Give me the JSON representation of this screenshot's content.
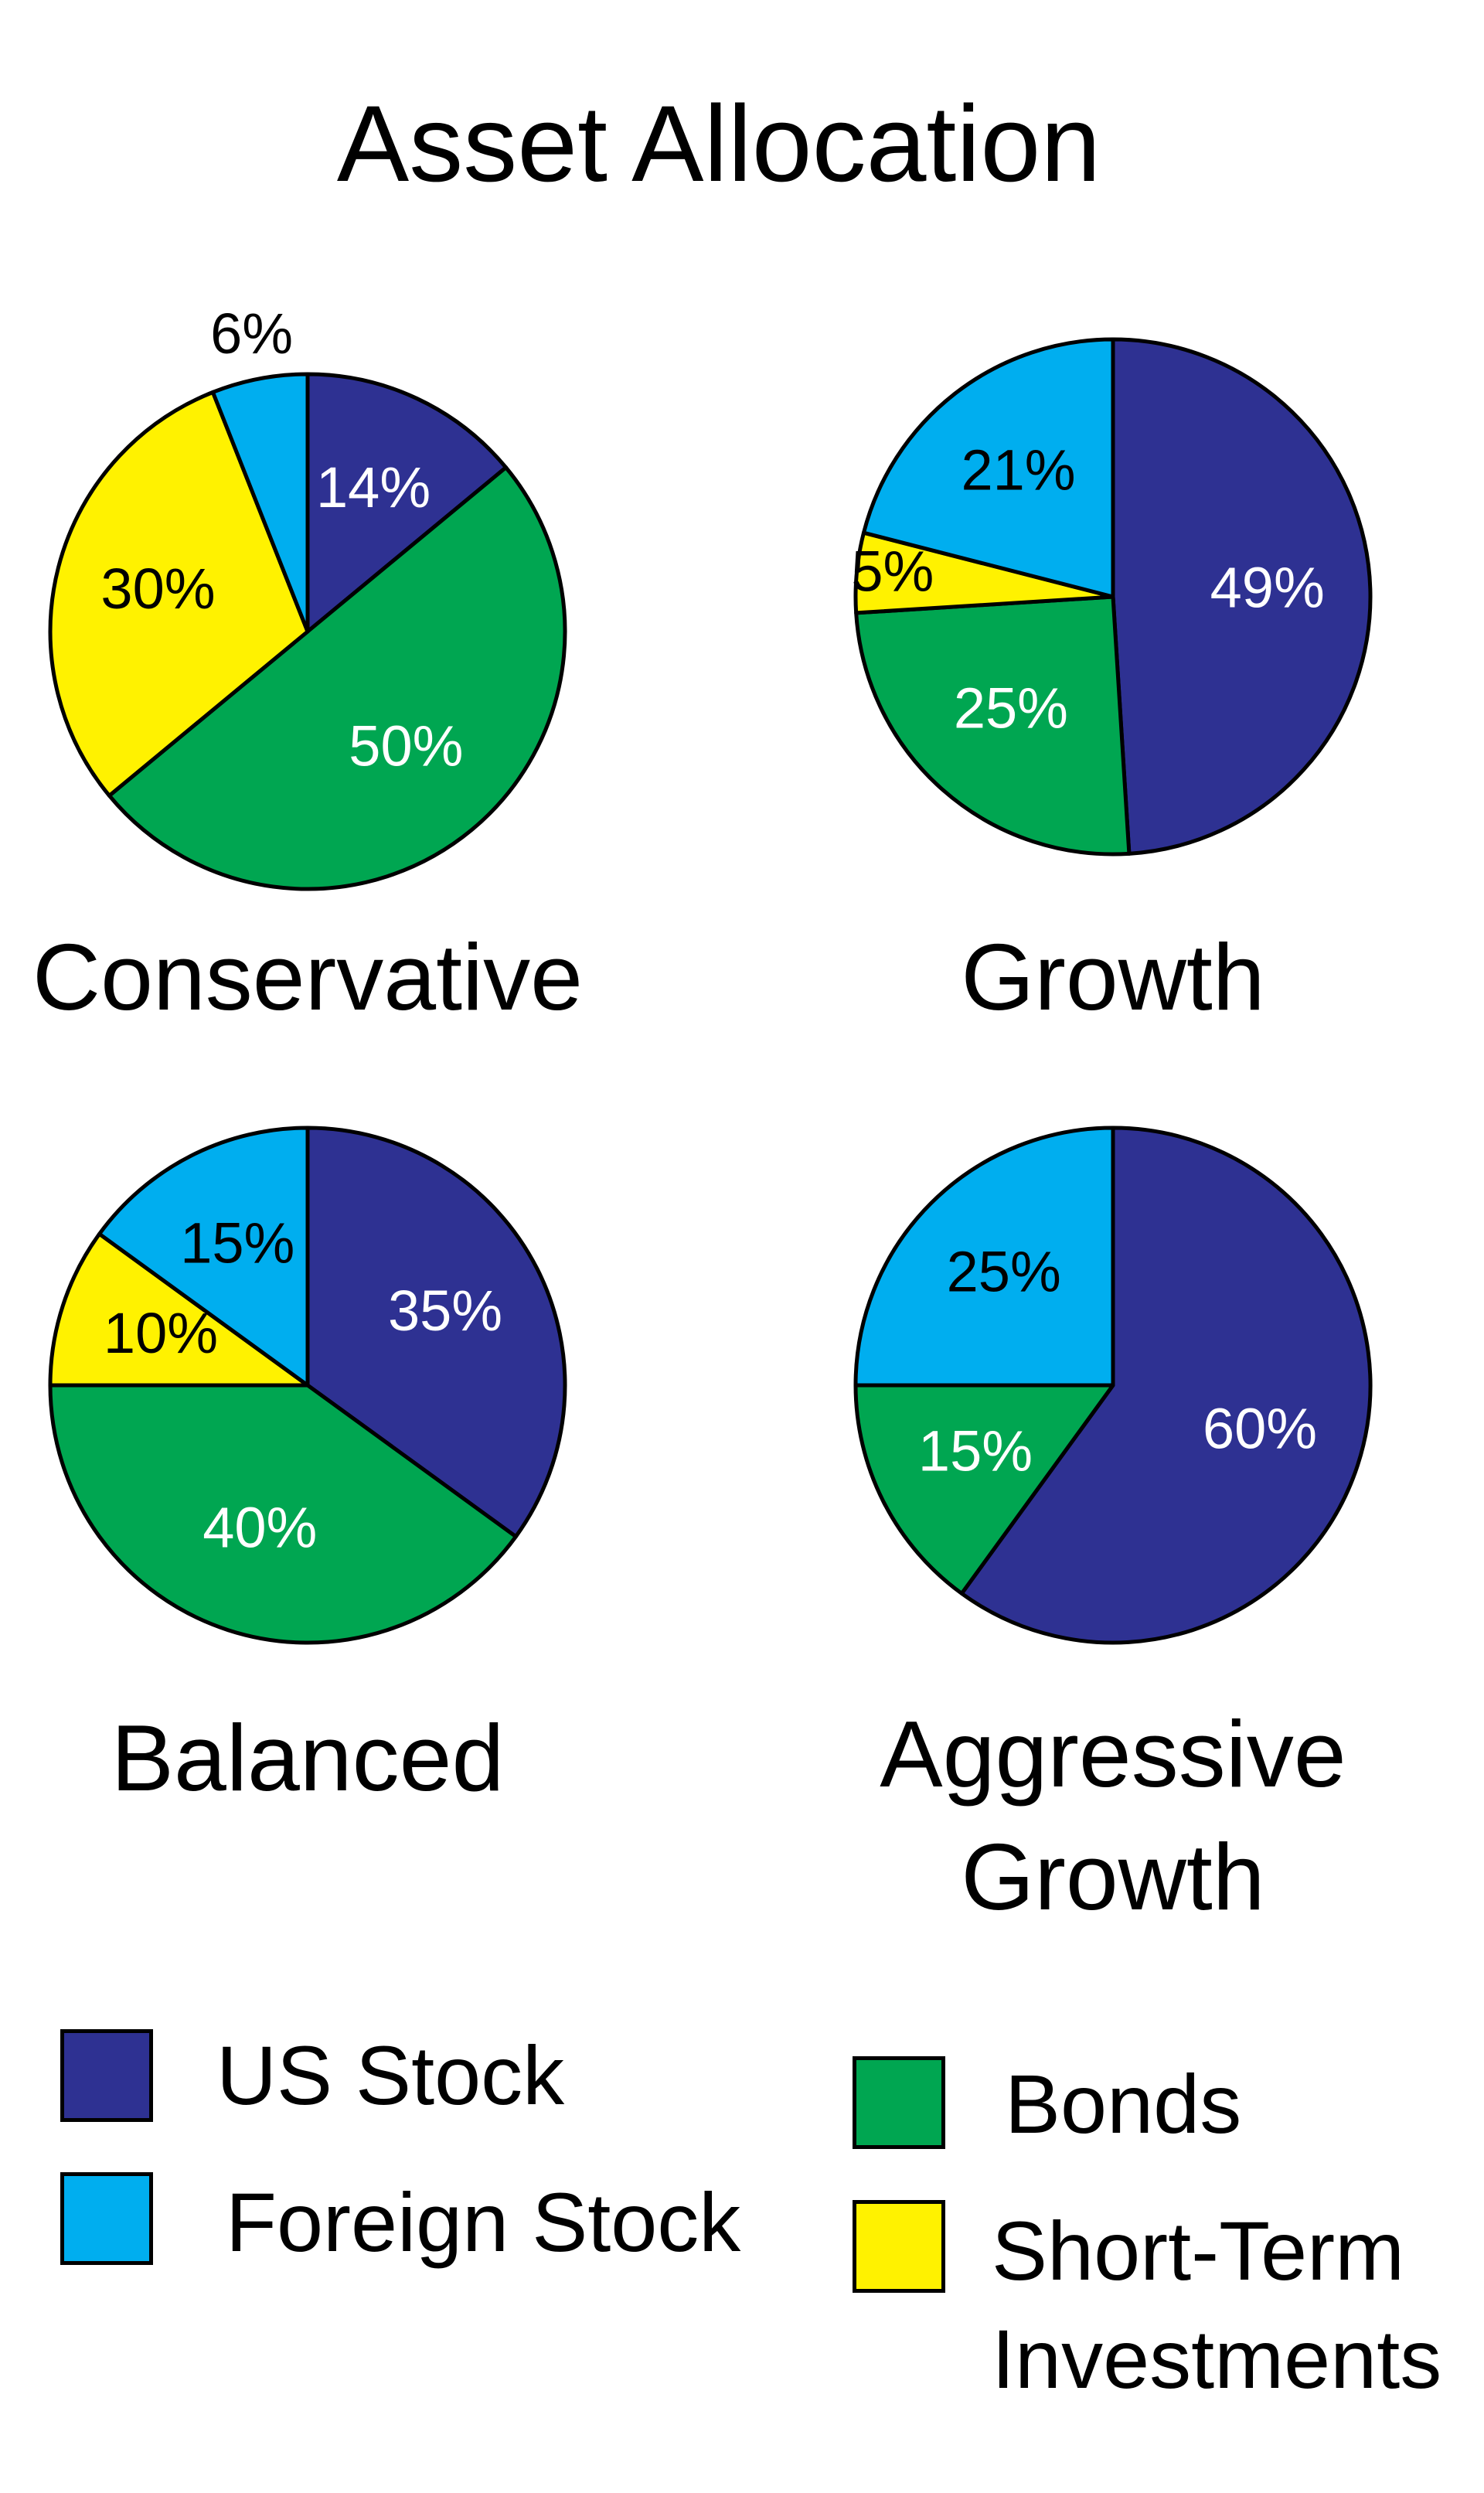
{
  "title": "Asset Allocation",
  "legend": [
    {
      "name": "US Stock",
      "color": "#2e3192"
    },
    {
      "name": "Foreign Stock",
      "color": "#00aeef"
    },
    {
      "name": "Bonds",
      "color": "#00a651"
    },
    {
      "name": "Short-Term Investments",
      "color": "#fff200"
    }
  ],
  "chart_data": [
    {
      "type": "pie",
      "title": "Conservative",
      "values": [
        14,
        6,
        50,
        30
      ],
      "value_labels": [
        "14%",
        "6%",
        "50%",
        "30%"
      ]
    },
    {
      "type": "pie",
      "title": "Growth",
      "values": [
        49,
        21,
        25,
        5
      ],
      "value_labels": [
        "49%",
        "21%",
        "25%",
        "5%"
      ]
    },
    {
      "type": "pie",
      "title": "Balanced",
      "values": [
        35,
        15,
        40,
        10
      ],
      "value_labels": [
        "35%",
        "15%",
        "40%",
        "10%"
      ]
    },
    {
      "type": "pie",
      "title": "Aggressive Growth",
      "values": [
        60,
        25,
        15,
        null
      ],
      "value_labels": [
        "60%",
        "25%",
        "15%",
        null
      ]
    }
  ]
}
